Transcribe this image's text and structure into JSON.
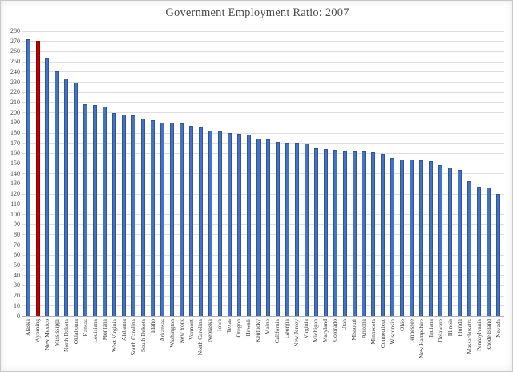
{
  "chart_data": {
    "type": "bar",
    "title": "Government Employment Ratio: 2007",
    "xlabel": "",
    "ylabel": "",
    "ylim": [
      0,
      280
    ],
    "ytick_step": 10,
    "grid": true,
    "legend": "none",
    "bar_color": "#4472C4",
    "bar_border_color": "#2F5597",
    "highlight_category": "Wyoming",
    "highlight_color": "#C00000",
    "highlight_border_color": "#8E0000",
    "categories": [
      "Alaska",
      "Wyoming",
      "New Mexico",
      "Mississippi",
      "North Dakota",
      "Oklahoma",
      "Kansas",
      "Louisiana",
      "Montana",
      "West Virginia",
      "Alabama",
      "South Carolina",
      "South Dakota",
      "Idaho",
      "Arkansas",
      "Washington",
      "New York",
      "Vermont",
      "North Carolina",
      "Nebraska",
      "Iowa",
      "Texas",
      "Oregon",
      "Hawaii",
      "Kentucky",
      "Maine",
      "California",
      "Georgia",
      "New Jersey",
      "Virginia",
      "Michigan",
      "Maryland",
      "Colorado",
      "Utah",
      "Missouri",
      "Arizona",
      "Minnesota",
      "Connecticut",
      "Wisconsin",
      "Ohio",
      "Tennessee",
      "New Hampshire",
      "Indiana",
      "Delaware",
      "Illinois",
      "Florida",
      "Massachusetts",
      "Pennsylvania",
      "Rhode Island",
      "Nevada"
    ],
    "values": [
      272,
      270,
      254,
      240,
      233,
      229,
      208,
      207,
      206,
      199,
      198,
      197,
      194,
      192,
      190,
      190,
      189,
      187,
      185,
      182,
      181,
      180,
      179,
      178,
      174,
      173,
      171,
      170,
      170,
      169,
      165,
      164,
      163,
      162,
      162,
      162,
      161,
      159,
      155,
      154,
      154,
      153,
      152,
      148,
      146,
      143,
      132,
      127,
      126,
      120
    ],
    "yticks": [
      0,
      10,
      20,
      30,
      40,
      50,
      60,
      70,
      80,
      90,
      100,
      110,
      120,
      130,
      140,
      150,
      160,
      170,
      180,
      190,
      200,
      210,
      220,
      230,
      240,
      250,
      260,
      270,
      280
    ]
  }
}
